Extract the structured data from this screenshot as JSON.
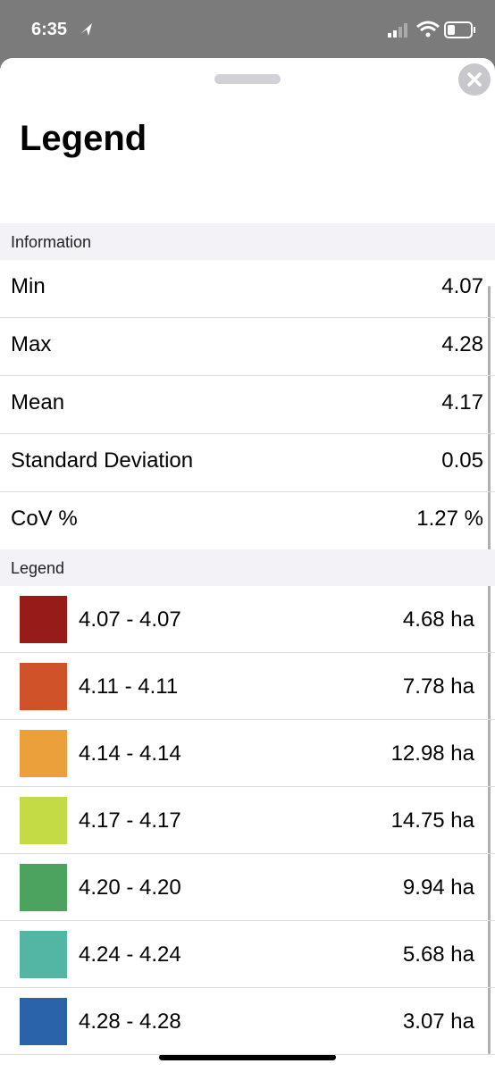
{
  "status_bar": {
    "time": "6:35"
  },
  "header": {
    "title": "Legend"
  },
  "information": {
    "heading": "Information",
    "rows": [
      [
        "Min",
        "4.07"
      ],
      [
        "Max",
        "4.28"
      ],
      [
        "Mean",
        "4.17"
      ],
      [
        "Standard Deviation",
        "0.05"
      ],
      [
        "CoV %",
        "1.27 %"
      ]
    ]
  },
  "legend": {
    "heading": "Legend",
    "rows": [
      {
        "range": "4.07 - 4.07",
        "area": "4.68 ha",
        "color": "#971b16"
      },
      {
        "range": "4.11 - 4.11",
        "area": "7.78 ha",
        "color": "#cf5229"
      },
      {
        "range": "4.14 - 4.14",
        "area": "12.98 ha",
        "color": "#eba03c"
      },
      {
        "range": "4.17 - 4.17",
        "area": "14.75 ha",
        "color": "#c4db46"
      },
      {
        "range": "4.20 - 4.20",
        "area": "9.94 ha",
        "color": "#4ca35f"
      },
      {
        "range": "4.24 - 4.24",
        "area": "5.68 ha",
        "color": "#53b5a4"
      },
      {
        "range": "4.28 - 4.28",
        "area": "3.07 ha",
        "color": "#2a63a9"
      }
    ]
  }
}
